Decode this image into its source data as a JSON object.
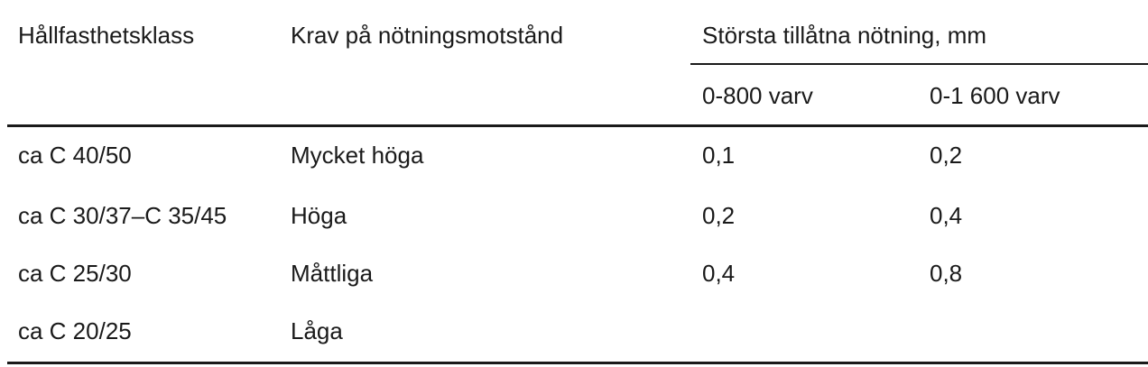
{
  "table": {
    "headers": {
      "strength_class": "Hållfasthetsklass",
      "requirement": "Krav på nötningsmotstånd",
      "max_wear": "Största tillåtna nötning, mm",
      "sub_800": "0-800 varv",
      "sub_1600": "0-1 600 varv"
    },
    "rows": [
      {
        "strength_class": "ca C 40/50",
        "requirement": "Mycket höga",
        "wear_800": "0,1",
        "wear_1600": "0,2"
      },
      {
        "strength_class": "ca C 30/37–C 35/45",
        "requirement": "Höga",
        "wear_800": "0,2",
        "wear_1600": "0,4"
      },
      {
        "strength_class": "ca C 25/30",
        "requirement": "Måttliga",
        "wear_800": "0,4",
        "wear_1600": "0,8"
      },
      {
        "strength_class": "ca C 20/25",
        "requirement": "Låga",
        "wear_800": "",
        "wear_1600": ""
      }
    ]
  }
}
